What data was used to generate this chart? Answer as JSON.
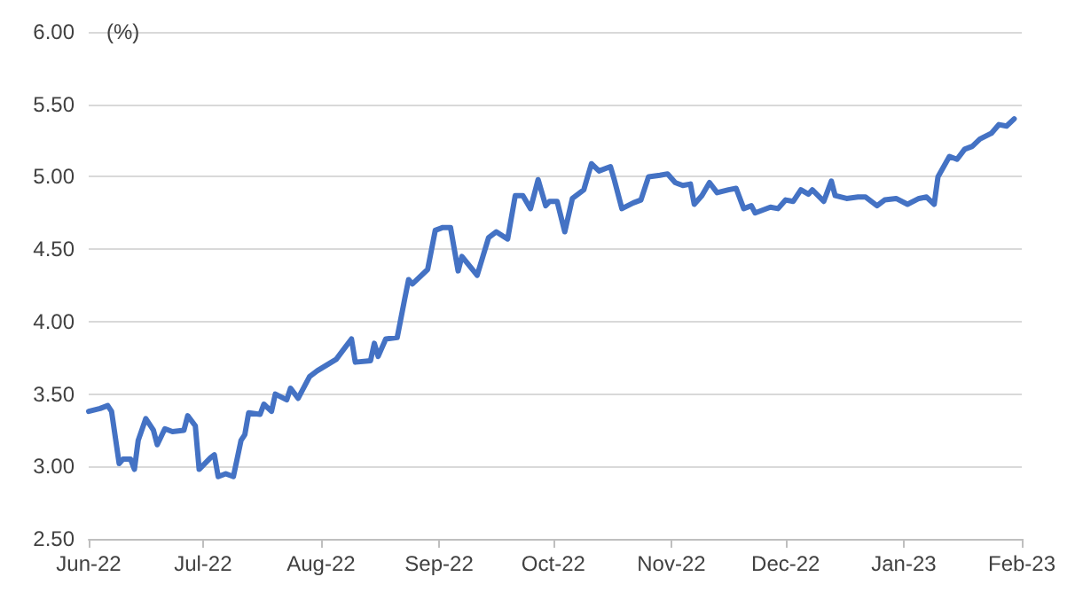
{
  "chart_data": {
    "type": "line",
    "ylabel": "(%)",
    "x": [
      "2022-06-01",
      "2022-06-04",
      "2022-06-06",
      "2022-06-07",
      "2022-06-09",
      "2022-06-10",
      "2022-06-12",
      "2022-06-13",
      "2022-06-14",
      "2022-06-16",
      "2022-06-18",
      "2022-06-19",
      "2022-06-21",
      "2022-06-23",
      "2022-06-26",
      "2022-06-27",
      "2022-06-29",
      "2022-06-30",
      "2022-07-03",
      "2022-07-04",
      "2022-07-05",
      "2022-07-07",
      "2022-07-09",
      "2022-07-11",
      "2022-07-12",
      "2022-07-13",
      "2022-07-16",
      "2022-07-17",
      "2022-07-19",
      "2022-07-20",
      "2022-07-23",
      "2022-07-24",
      "2022-07-26",
      "2022-07-29",
      "2022-07-31",
      "2022-08-05",
      "2022-08-07",
      "2022-08-09",
      "2022-08-10",
      "2022-08-14",
      "2022-08-15",
      "2022-08-16",
      "2022-08-18",
      "2022-08-21",
      "2022-08-23",
      "2022-08-24",
      "2022-08-25",
      "2022-08-29",
      "2022-08-31",
      "2022-09-02",
      "2022-09-04",
      "2022-09-06",
      "2022-09-07",
      "2022-09-11",
      "2022-09-14",
      "2022-09-16",
      "2022-09-19",
      "2022-09-21",
      "2022-09-23",
      "2022-09-25",
      "2022-09-27",
      "2022-09-29",
      "2022-09-30",
      "2022-10-02",
      "2022-10-04",
      "2022-10-06",
      "2022-10-09",
      "2022-10-11",
      "2022-10-13",
      "2022-10-16",
      "2022-10-17",
      "2022-10-19",
      "2022-10-22",
      "2022-10-24",
      "2022-10-26",
      "2022-10-29",
      "2022-10-31",
      "2022-11-02",
      "2022-11-04",
      "2022-11-06",
      "2022-11-07",
      "2022-11-09",
      "2022-11-11",
      "2022-11-13",
      "2022-11-16",
      "2022-11-18",
      "2022-11-20",
      "2022-11-22",
      "2022-11-23",
      "2022-11-27",
      "2022-11-29",
      "2022-12-01",
      "2022-12-03",
      "2022-12-05",
      "2022-12-07",
      "2022-12-08",
      "2022-12-11",
      "2022-12-13",
      "2022-12-14",
      "2022-12-17",
      "2022-12-20",
      "2022-12-22",
      "2022-12-25",
      "2022-12-27",
      "2022-12-30",
      "2023-01-02",
      "2023-01-05",
      "2023-01-07",
      "2023-01-09",
      "2023-01-10",
      "2023-01-13",
      "2023-01-15",
      "2023-01-17",
      "2023-01-19",
      "2023-01-21",
      "2023-01-24",
      "2023-01-26",
      "2023-01-28",
      "2023-01-30"
    ],
    "series": [
      {
        "color": "#4472c4",
        "values": [
          3.38,
          3.4,
          3.42,
          3.38,
          3.02,
          3.05,
          3.05,
          2.98,
          3.18,
          3.33,
          3.25,
          3.15,
          3.26,
          3.24,
          3.25,
          3.35,
          3.28,
          2.98,
          3.06,
          3.08,
          2.93,
          2.95,
          2.93,
          3.18,
          3.22,
          3.37,
          3.36,
          3.43,
          3.38,
          3.5,
          3.46,
          3.54,
          3.47,
          3.62,
          3.66,
          3.74,
          3.81,
          3.88,
          3.72,
          3.73,
          3.85,
          3.76,
          3.88,
          3.89,
          4.16,
          4.29,
          4.26,
          4.36,
          4.63,
          4.65,
          4.65,
          4.35,
          4.45,
          4.32,
          4.58,
          4.62,
          4.57,
          4.87,
          4.87,
          4.78,
          4.98,
          4.8,
          4.83,
          4.83,
          4.62,
          4.85,
          4.91,
          5.09,
          5.04,
          5.07,
          4.98,
          4.78,
          4.82,
          4.84,
          5.0,
          5.01,
          5.02,
          4.96,
          4.94,
          4.95,
          4.81,
          4.87,
          4.96,
          4.89,
          4.91,
          4.92,
          4.78,
          4.8,
          4.75,
          4.79,
          4.78,
          4.84,
          4.83,
          4.91,
          4.88,
          4.91,
          4.83,
          4.97,
          4.87,
          4.85,
          4.86,
          4.86,
          4.8,
          4.84,
          4.85,
          4.81,
          4.85,
          4.86,
          4.81,
          5.0,
          5.14,
          5.12,
          5.19,
          5.21,
          5.26,
          5.3,
          5.36,
          5.35,
          5.4
        ]
      }
    ],
    "xlim": [
      "2022-06-01",
      "2023-02-01"
    ],
    "xticks": [
      {
        "value": "2022-06-01",
        "label": "Jun-22"
      },
      {
        "value": "2022-07-01",
        "label": "Jul-22"
      },
      {
        "value": "2022-08-01",
        "label": "Aug-22"
      },
      {
        "value": "2022-09-01",
        "label": "Sep-22"
      },
      {
        "value": "2022-10-01",
        "label": "Oct-22"
      },
      {
        "value": "2022-11-01",
        "label": "Nov-22"
      },
      {
        "value": "2022-12-01",
        "label": "Dec-22"
      },
      {
        "value": "2023-01-01",
        "label": "Jan-23"
      },
      {
        "value": "2023-02-01",
        "label": "Feb-23"
      }
    ],
    "ylim": [
      2.5,
      6
    ],
    "yticks": [
      {
        "value": 2.5,
        "label": "2.50"
      },
      {
        "value": 3,
        "label": "3.00"
      },
      {
        "value": 3.5,
        "label": "3.50"
      },
      {
        "value": 4,
        "label": "4.00"
      },
      {
        "value": 4.5,
        "label": "4.50"
      },
      {
        "value": 5,
        "label": "5.00"
      },
      {
        "value": 5.5,
        "label": "5.50"
      },
      {
        "value": 6,
        "label": "6.00"
      }
    ],
    "grid": "y",
    "marker": "none",
    "line_style": "solid"
  }
}
